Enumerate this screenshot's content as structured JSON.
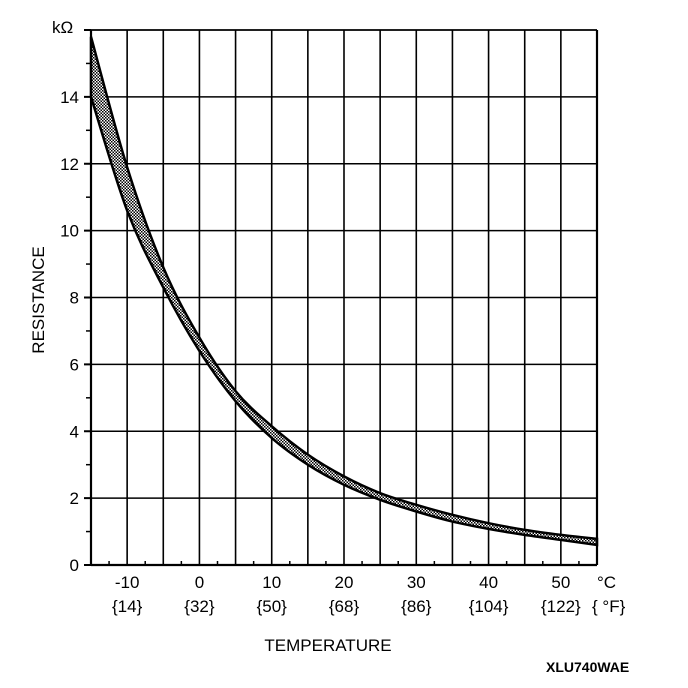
{
  "chart_data": {
    "type": "line",
    "title": "",
    "y_unit": "kΩ",
    "ylabel": "RESISTANCE",
    "xlabel": "TEMPERATURE",
    "x_unit_c": "°C",
    "x_unit_f": "{ °F}",
    "xlim": [
      -15,
      55
    ],
    "ylim": [
      0,
      16
    ],
    "grid": true,
    "x_ticks": [
      {
        "c": "-10",
        "f": "{14}",
        "value": -10
      },
      {
        "c": "0",
        "f": "{32}",
        "value": 0
      },
      {
        "c": "10",
        "f": "{50}",
        "value": 10
      },
      {
        "c": "20",
        "f": "{68}",
        "value": 20
      },
      {
        "c": "30",
        "f": "{86}",
        "value": 30
      },
      {
        "c": "40",
        "f": "{104}",
        "value": 40
      },
      {
        "c": "50",
        "f": "{122}",
        "value": 50
      }
    ],
    "y_ticks": [
      "0",
      "2",
      "4",
      "6",
      "8",
      "10",
      "12",
      "14"
    ],
    "series": [
      {
        "name": "upper limit",
        "x": [
          -15,
          -10,
          -5,
          0,
          5,
          10,
          15,
          20,
          25,
          30,
          35,
          40,
          45,
          50,
          55
        ],
        "values": [
          15.8,
          11.9,
          8.9,
          6.8,
          5.2,
          4.15,
          3.3,
          2.65,
          2.15,
          1.8,
          1.5,
          1.25,
          1.05,
          0.9,
          0.78
        ]
      },
      {
        "name": "lower limit",
        "x": [
          -15,
          -10,
          -5,
          0,
          5,
          10,
          15,
          20,
          25,
          30,
          35,
          40,
          45,
          50,
          55
        ],
        "values": [
          14.0,
          10.6,
          8.3,
          6.4,
          4.9,
          3.8,
          3.0,
          2.4,
          1.95,
          1.6,
          1.3,
          1.08,
          0.9,
          0.75,
          0.6
        ]
      }
    ]
  },
  "figure_code": "XLU740WAE"
}
